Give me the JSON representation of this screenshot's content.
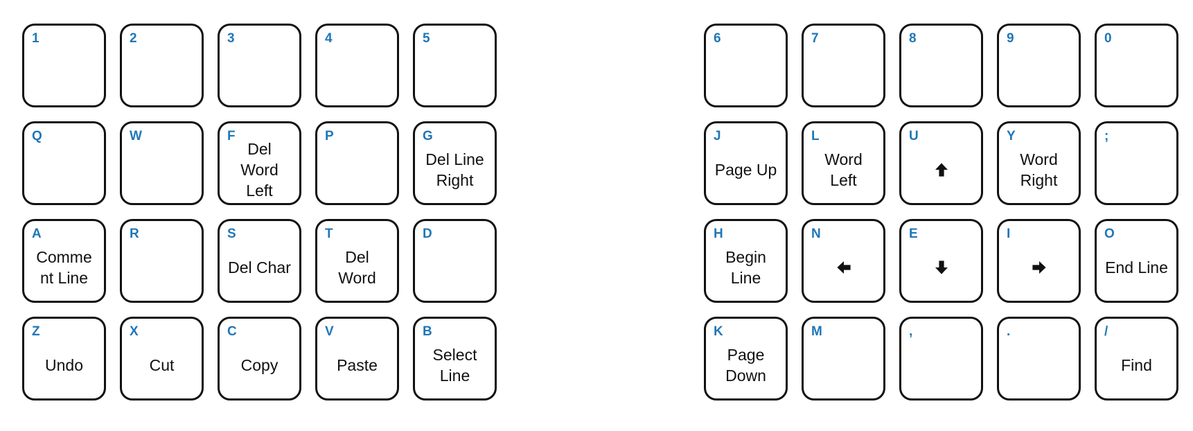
{
  "colors": {
    "letter": "#1f77b8",
    "border": "#111111",
    "text": "#111111",
    "background": "#ffffff"
  },
  "left_half": [
    {
      "letter": "1",
      "action": ""
    },
    {
      "letter": "2",
      "action": ""
    },
    {
      "letter": "3",
      "action": ""
    },
    {
      "letter": "4",
      "action": ""
    },
    {
      "letter": "5",
      "action": ""
    },
    {
      "letter": "Q",
      "action": ""
    },
    {
      "letter": "W",
      "action": ""
    },
    {
      "letter": "F",
      "action": "Del\nWord\nLeft"
    },
    {
      "letter": "P",
      "action": ""
    },
    {
      "letter": "G",
      "action": "Del Line\nRight"
    },
    {
      "letter": "A",
      "action": "Comme\nnt Line"
    },
    {
      "letter": "R",
      "action": ""
    },
    {
      "letter": "S",
      "action": "Del Char"
    },
    {
      "letter": "T",
      "action": "Del\nWord"
    },
    {
      "letter": "D",
      "action": ""
    },
    {
      "letter": "Z",
      "action": "Undo"
    },
    {
      "letter": "X",
      "action": "Cut"
    },
    {
      "letter": "C",
      "action": "Copy"
    },
    {
      "letter": "V",
      "action": "Paste"
    },
    {
      "letter": "B",
      "action": "Select\nLine"
    }
  ],
  "right_half": [
    {
      "letter": "6",
      "action": ""
    },
    {
      "letter": "7",
      "action": ""
    },
    {
      "letter": "8",
      "action": ""
    },
    {
      "letter": "9",
      "action": ""
    },
    {
      "letter": "0",
      "action": ""
    },
    {
      "letter": "J",
      "action": "Page Up"
    },
    {
      "letter": "L",
      "action": "Word\nLeft"
    },
    {
      "letter": "U",
      "action": "",
      "icon": "arrow-up"
    },
    {
      "letter": "Y",
      "action": "Word\nRight"
    },
    {
      "letter": ";",
      "action": ""
    },
    {
      "letter": "H",
      "action": "Begin\nLine"
    },
    {
      "letter": "N",
      "action": "",
      "icon": "arrow-left"
    },
    {
      "letter": "E",
      "action": "",
      "icon": "arrow-down"
    },
    {
      "letter": "I",
      "action": "",
      "icon": "arrow-right"
    },
    {
      "letter": "O",
      "action": "End Line"
    },
    {
      "letter": "K",
      "action": "Page\nDown"
    },
    {
      "letter": "M",
      "action": ""
    },
    {
      "letter": ",",
      "action": ""
    },
    {
      "letter": ".",
      "action": ""
    },
    {
      "letter": "/",
      "action": "Find"
    }
  ]
}
